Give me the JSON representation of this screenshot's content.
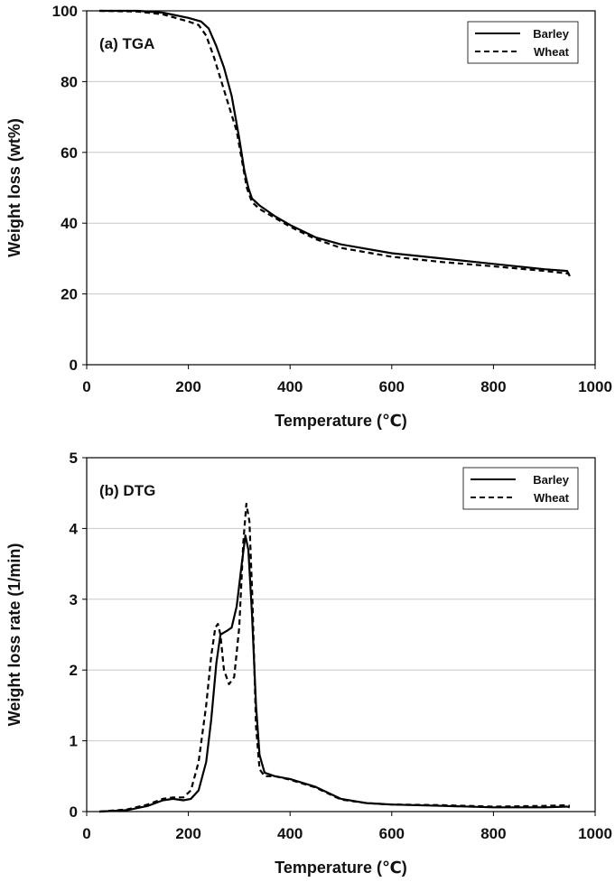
{
  "chart_data": [
    {
      "type": "line",
      "panel_label": "(a) TGA",
      "xlabel": "Temperature (℃)",
      "ylabel": "Weight loss (wt%)",
      "xlim": [
        0,
        1000
      ],
      "ylim": [
        0,
        100
      ],
      "x_ticks": [
        0,
        200,
        400,
        600,
        800,
        1000
      ],
      "y_ticks": [
        0,
        20,
        40,
        60,
        80,
        100
      ],
      "grid": "horizontal",
      "legend": "top-right",
      "series": [
        {
          "name": "Barley",
          "style": "solid",
          "points": [
            [
              25,
              100
            ],
            [
              100,
              100
            ],
            [
              150,
              99.5
            ],
            [
              200,
              98
            ],
            [
              225,
              97
            ],
            [
              240,
              95
            ],
            [
              255,
              90
            ],
            [
              270,
              84
            ],
            [
              285,
              76
            ],
            [
              300,
              64
            ],
            [
              310,
              55
            ],
            [
              318,
              50
            ],
            [
              325,
              47
            ],
            [
              340,
              45
            ],
            [
              370,
              42
            ],
            [
              400,
              39.5
            ],
            [
              450,
              36
            ],
            [
              500,
              34
            ],
            [
              600,
              31.5
            ],
            [
              700,
              30
            ],
            [
              800,
              28.5
            ],
            [
              900,
              27
            ],
            [
              945,
              26.5
            ],
            [
              950,
              25
            ]
          ]
        },
        {
          "name": "Wheat",
          "style": "dashed",
          "points": [
            [
              25,
              100
            ],
            [
              100,
              99.8
            ],
            [
              150,
              99
            ],
            [
              200,
              97
            ],
            [
              220,
              96
            ],
            [
              235,
              93
            ],
            [
              250,
              87
            ],
            [
              265,
              80
            ],
            [
              280,
              73
            ],
            [
              295,
              66
            ],
            [
              305,
              58
            ],
            [
              315,
              50
            ],
            [
              325,
              46
            ],
            [
              340,
              44
            ],
            [
              370,
              41.5
            ],
            [
              400,
              39
            ],
            [
              450,
              35.5
            ],
            [
              500,
              33
            ],
            [
              600,
              30.5
            ],
            [
              700,
              29
            ],
            [
              800,
              27.8
            ],
            [
              900,
              26.5
            ],
            [
              945,
              25.8
            ],
            [
              950,
              25.5
            ]
          ]
        }
      ]
    },
    {
      "type": "line",
      "panel_label": "(b) DTG",
      "xlabel": "Temperature (℃)",
      "ylabel": "Weight loss rate (1/min)",
      "xlim": [
        0,
        1000
      ],
      "ylim": [
        0,
        5
      ],
      "x_ticks": [
        0,
        200,
        400,
        600,
        800,
        1000
      ],
      "y_ticks": [
        0,
        1,
        2,
        3,
        4,
        5
      ],
      "grid": "horizontal",
      "legend": "top-right",
      "series": [
        {
          "name": "Barley",
          "style": "solid",
          "points": [
            [
              25,
              0.0
            ],
            [
              80,
              0.02
            ],
            [
              120,
              0.08
            ],
            [
              150,
              0.16
            ],
            [
              170,
              0.18
            ],
            [
              190,
              0.16
            ],
            [
              205,
              0.18
            ],
            [
              220,
              0.3
            ],
            [
              235,
              0.7
            ],
            [
              245,
              1.3
            ],
            [
              255,
              2.1
            ],
            [
              263,
              2.5
            ],
            [
              275,
              2.55
            ],
            [
              285,
              2.6
            ],
            [
              295,
              2.9
            ],
            [
              305,
              3.5
            ],
            [
              312,
              3.9
            ],
            [
              318,
              3.7
            ],
            [
              325,
              2.8
            ],
            [
              333,
              1.5
            ],
            [
              340,
              0.8
            ],
            [
              350,
              0.55
            ],
            [
              370,
              0.5
            ],
            [
              400,
              0.46
            ],
            [
              450,
              0.35
            ],
            [
              500,
              0.18
            ],
            [
              550,
              0.12
            ],
            [
              600,
              0.1
            ],
            [
              700,
              0.08
            ],
            [
              800,
              0.06
            ],
            [
              900,
              0.06
            ],
            [
              945,
              0.07
            ],
            [
              950,
              0.06
            ]
          ]
        },
        {
          "name": "Wheat",
          "style": "dashed",
          "points": [
            [
              25,
              0.0
            ],
            [
              80,
              0.03
            ],
            [
              120,
              0.1
            ],
            [
              150,
              0.18
            ],
            [
              170,
              0.2
            ],
            [
              190,
              0.2
            ],
            [
              205,
              0.3
            ],
            [
              220,
              0.7
            ],
            [
              235,
              1.5
            ],
            [
              245,
              2.2
            ],
            [
              253,
              2.6
            ],
            [
              258,
              2.65
            ],
            [
              263,
              2.5
            ],
            [
              270,
              2.0
            ],
            [
              280,
              1.8
            ],
            [
              290,
              1.9
            ],
            [
              300,
              2.6
            ],
            [
              308,
              3.8
            ],
            [
              314,
              4.35
            ],
            [
              320,
              4.1
            ],
            [
              326,
              3.0
            ],
            [
              333,
              1.2
            ],
            [
              340,
              0.6
            ],
            [
              350,
              0.5
            ],
            [
              370,
              0.5
            ],
            [
              400,
              0.45
            ],
            [
              450,
              0.34
            ],
            [
              500,
              0.17
            ],
            [
              550,
              0.12
            ],
            [
              600,
              0.1
            ],
            [
              700,
              0.09
            ],
            [
              800,
              0.07
            ],
            [
              900,
              0.08
            ],
            [
              945,
              0.09
            ],
            [
              950,
              0.08
            ]
          ]
        }
      ]
    }
  ]
}
